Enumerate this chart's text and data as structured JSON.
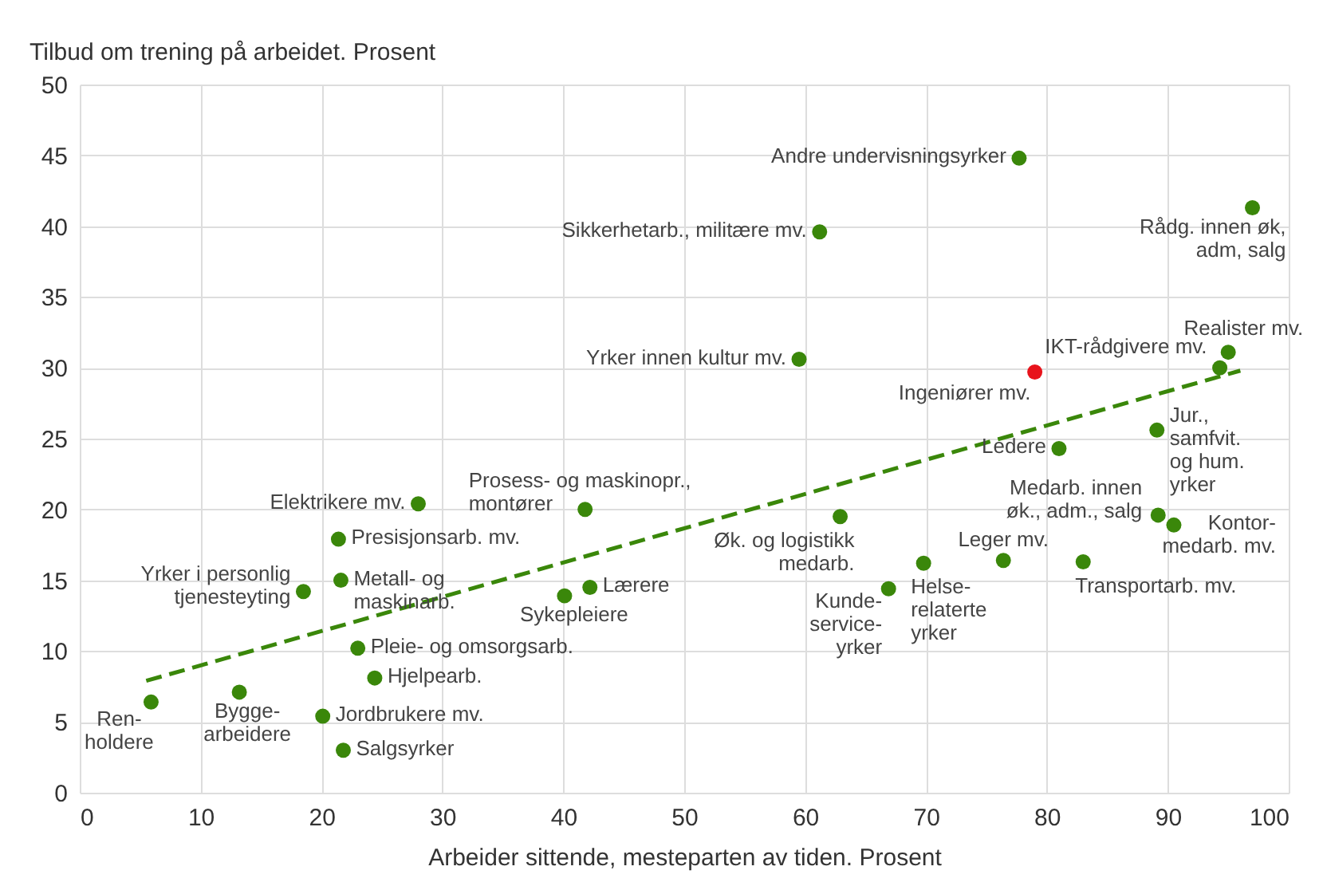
{
  "chart_data": {
    "type": "scatter",
    "xlabel": "Arbeider sittende, mesteparten av tiden. Prosent",
    "ylabel": "Tilbud om trening på arbeidet. Prosent",
    "xlim": [
      0,
      100
    ],
    "ylim": [
      0,
      50
    ],
    "xticks": [
      0,
      10,
      20,
      30,
      40,
      50,
      60,
      70,
      80,
      90,
      100
    ],
    "yticks": [
      0,
      5,
      10,
      15,
      20,
      25,
      30,
      35,
      40,
      45,
      50
    ],
    "grid": true,
    "marker": "circle",
    "series": [
      {
        "color": "#3a870a",
        "x": [
          5.9,
          13.2,
          18.5,
          28.0,
          21.4,
          21.6,
          23.0,
          24.4,
          20.1,
          21.8,
          41.8,
          40.1,
          42.2,
          59.5,
          61.2,
          77.7,
          62.9,
          66.9,
          69.8,
          76.4,
          83.0,
          81.0,
          94.3,
          95.0,
          97.0,
          89.1,
          89.2,
          90.5
        ],
        "values": [
          6.4,
          7.1,
          14.2,
          20.4,
          17.9,
          15.0,
          10.2,
          8.1,
          5.4,
          3.0,
          20.0,
          13.9,
          14.5,
          30.6,
          39.6,
          44.8,
          19.5,
          14.4,
          16.2,
          16.4,
          16.3,
          24.3,
          30.0,
          31.1,
          41.3,
          25.6,
          19.6,
          18.9
        ]
      },
      {
        "color": "#e8131b",
        "x": [
          79.0
        ],
        "values": [
          29.7
        ]
      },
      {
        "type": "line",
        "color": "#3a870a",
        "line_style": "dashed",
        "marker": "none",
        "x": [
          5.5,
          96.0
        ],
        "values": [
          7.9,
          29.8
        ]
      }
    ],
    "annotations": [
      {
        "text": "Ren-\nholdere",
        "x": 5.9,
        "y": 6.4
      },
      {
        "text": "Bygge-\narbeidere",
        "x": 13.2,
        "y": 7.1
      },
      {
        "text": "Yrker i personlig\ntjenesteyting",
        "x": 18.5,
        "y": 14.2
      },
      {
        "text": "Elektrikere mv.",
        "x": 28.0,
        "y": 20.4
      },
      {
        "text": "Presisjonsarb. mv.",
        "x": 21.4,
        "y": 17.9
      },
      {
        "text": "Metall- og\nmaskinarb.",
        "x": 21.6,
        "y": 15.0
      },
      {
        "text": "Pleie- og omsorgsarb.",
        "x": 23.0,
        "y": 10.2
      },
      {
        "text": "Hjelpearb.",
        "x": 24.4,
        "y": 8.1
      },
      {
        "text": "Jordbrukere mv.",
        "x": 20.1,
        "y": 5.4
      },
      {
        "text": "Salgsyrker",
        "x": 21.8,
        "y": 3.0
      },
      {
        "text": "Prosess- og maskinopr.,\nmontører",
        "x": 41.8,
        "y": 20.0
      },
      {
        "text": "Sykepleiere",
        "x": 40.1,
        "y": 13.9
      },
      {
        "text": "Lærere",
        "x": 42.2,
        "y": 14.5
      },
      {
        "text": "Yrker innen kultur mv.",
        "x": 59.5,
        "y": 30.6
      },
      {
        "text": "Sikkerhetarb., militære mv.",
        "x": 61.2,
        "y": 39.6
      },
      {
        "text": "Andre undervisningsyrker",
        "x": 77.7,
        "y": 44.8
      },
      {
        "text": "Øk. og logistikk\nmedarb.",
        "x": 62.9,
        "y": 19.5
      },
      {
        "text": "Kunde-\nservice-\nyrker",
        "x": 66.9,
        "y": 14.4
      },
      {
        "text": "Helse-\nrelaterte\nyrker",
        "x": 69.8,
        "y": 16.2
      },
      {
        "text": "Leger mv.",
        "x": 76.4,
        "y": 16.4
      },
      {
        "text": "Transportarb. mv.",
        "x": 83.0,
        "y": 16.3
      },
      {
        "text": "Ledere",
        "x": 81.0,
        "y": 24.3
      },
      {
        "text": "Ingeniører mv.",
        "x": 79.0,
        "y": 29.7
      },
      {
        "text": "IKT-rådgivere mv.",
        "x": 94.3,
        "y": 30.0
      },
      {
        "text": "Realister mv.",
        "x": 95.0,
        "y": 31.1
      },
      {
        "text": "Rådg. innen øk,\nadm, salg",
        "x": 97.0,
        "y": 41.3
      },
      {
        "text": "Jur.,\nsamfvit.\nog hum.\nyrker",
        "x": 89.1,
        "y": 25.6
      },
      {
        "text": "Medarb. innen\nøk., adm., salg",
        "x": 89.2,
        "y": 19.6
      },
      {
        "text": "Kontor-\nmedarb. mv.",
        "x": 90.5,
        "y": 18.9
      }
    ]
  }
}
